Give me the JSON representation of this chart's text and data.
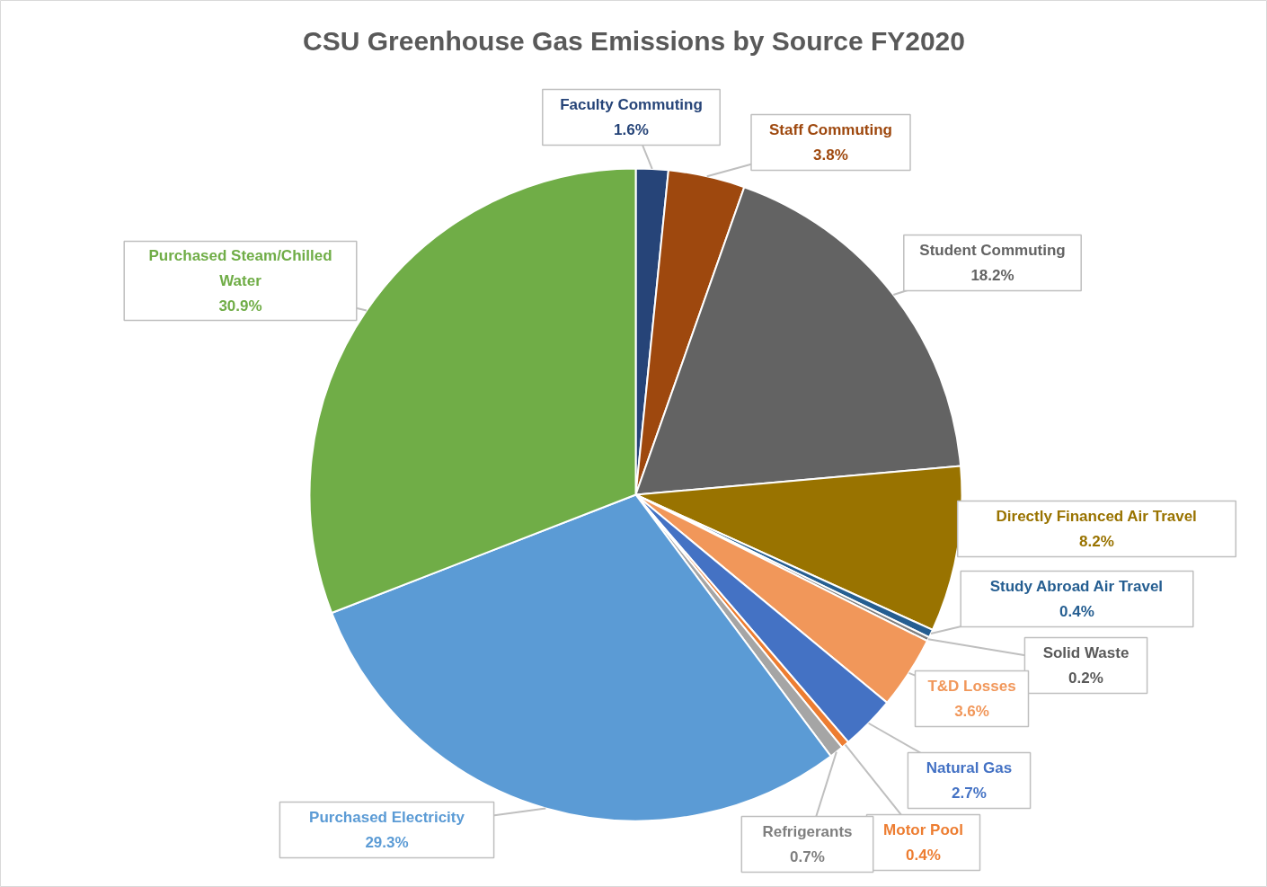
{
  "chart_data": {
    "type": "pie",
    "title": "CSU Greenhouse Gas Emissions by Source FY2020",
    "categories": [
      "Faculty Commuting",
      "Staff Commuting",
      "Student Commuting",
      "Directly Financed Air Travel",
      "Study Abroad Air Travel",
      "Solid Waste",
      "T&D Losses",
      "Natural Gas",
      "Motor Pool",
      "Refrigerants",
      "Purchased Electricity",
      "Purchased Steam/Chilled Water"
    ],
    "values": [
      1.6,
      3.8,
      18.2,
      8.2,
      0.4,
      0.2,
      3.6,
      2.7,
      0.4,
      0.7,
      29.3,
      30.9
    ],
    "colors": [
      "#264478",
      "#9e480e",
      "#636363",
      "#997300",
      "#255e91",
      "#7f7f7f",
      "#f1975a",
      "#4472c4",
      "#ed7d31",
      "#a5a5a5",
      "#5b9bd5",
      "#70ad47"
    ],
    "value_labels": [
      "1.6%",
      "3.8%",
      "18.2%",
      "8.2%",
      "0.4%",
      "0.2%",
      "3.6%",
      "2.7%",
      "0.4%",
      "0.7%",
      "29.3%",
      "30.9%"
    ]
  }
}
